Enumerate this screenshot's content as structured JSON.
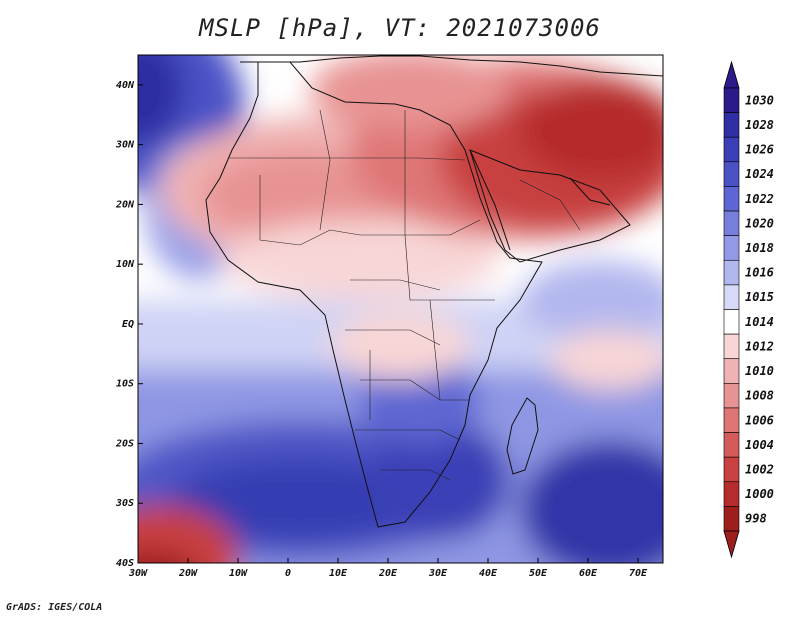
{
  "title": "MSLP [hPa], VT: 2021073006",
  "credit": "GrADS: IGES/COLA",
  "map": {
    "lon_range": [
      -30,
      75
    ],
    "lat_range": [
      -40,
      45
    ],
    "x_ticks": [
      {
        "value": -30,
        "label": "30W"
      },
      {
        "value": -20,
        "label": "20W"
      },
      {
        "value": -10,
        "label": "10W"
      },
      {
        "value": 0,
        "label": "0"
      },
      {
        "value": 10,
        "label": "10E"
      },
      {
        "value": 20,
        "label": "20E"
      },
      {
        "value": 30,
        "label": "30E"
      },
      {
        "value": 40,
        "label": "40E"
      },
      {
        "value": 50,
        "label": "50E"
      },
      {
        "value": 60,
        "label": "60E"
      },
      {
        "value": 70,
        "label": "70E"
      }
    ],
    "y_ticks": [
      {
        "value": 40,
        "label": "40N"
      },
      {
        "value": 30,
        "label": "30N"
      },
      {
        "value": 20,
        "label": "20N"
      },
      {
        "value": 10,
        "label": "10N"
      },
      {
        "value": 0,
        "label": "EQ"
      },
      {
        "value": -10,
        "label": "10S"
      },
      {
        "value": -20,
        "label": "20S"
      },
      {
        "value": -30,
        "label": "30S"
      },
      {
        "value": -40,
        "label": "40S"
      }
    ]
  },
  "colorbar": {
    "entries": [
      {
        "label": "1030",
        "color": "#2a1a8a"
      },
      {
        "label": "1028",
        "color": "#2f2ea3"
      },
      {
        "label": "1026",
        "color": "#3a3fb8"
      },
      {
        "label": "1024",
        "color": "#4b52c6"
      },
      {
        "label": "1022",
        "color": "#5d66d2"
      },
      {
        "label": "1020",
        "color": "#7680dc"
      },
      {
        "label": "1018",
        "color": "#9299e5"
      },
      {
        "label": "1016",
        "color": "#b2b7ee"
      },
      {
        "label": "1015",
        "color": "#d6d9f7"
      },
      {
        "label": "1014",
        "color": "#ffffff"
      },
      {
        "label": "1012",
        "color": "#f8d6d6"
      },
      {
        "label": "1010",
        "color": "#f0b2b2"
      },
      {
        "label": "1008",
        "color": "#e89393"
      },
      {
        "label": "1006",
        "color": "#df7676"
      },
      {
        "label": "1004",
        "color": "#d55a5a"
      },
      {
        "label": "1002",
        "color": "#c84040"
      },
      {
        "label": "1000",
        "color": "#b62c2c"
      },
      {
        "label": "998",
        "color": "#9e1d1d"
      }
    ]
  }
}
